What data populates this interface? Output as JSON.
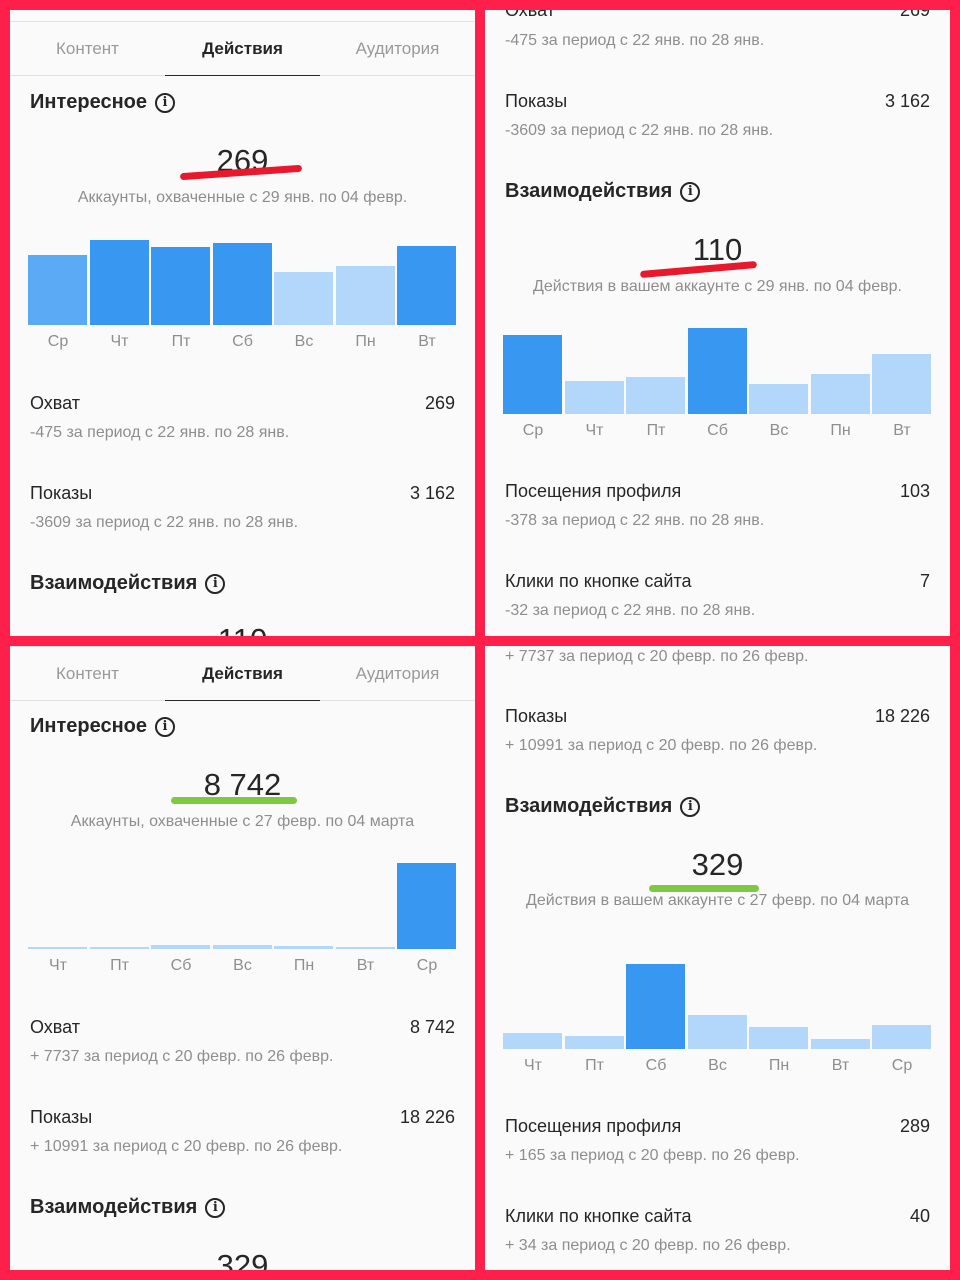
{
  "tabs": [
    "Контент",
    "Действия",
    "Аудитория"
  ],
  "colors": {
    "frame": "#ff1f4b",
    "bar_dark": "#3897f0",
    "bar_mid": "#5aaaf5",
    "bar_light": "#b3d7fb",
    "underline_red": "#e8192c",
    "underline_green": "#7ec843"
  },
  "icons": {
    "info": "info-circle-icon"
  },
  "panel1": {
    "section_title": "Интересное",
    "reach_value": "269",
    "reach_caption": "Аккаунты, охваченные с 29 янв. по 04 февр.",
    "days": [
      "Ср",
      "Чт",
      "Пт",
      "Сб",
      "Вс",
      "Пн",
      "Вт"
    ],
    "rows": [
      {
        "label": "Охват",
        "value": "269",
        "sub": "-475 за период с 22 янв. по 28 янв."
      },
      {
        "label": "Показы",
        "value": "3 162",
        "sub": "-3609 за период с 22 янв. по 28 янв."
      }
    ],
    "interactions_title": "Взаимодействия",
    "cut_value": "110"
  },
  "panel2": {
    "top_cut_label": "Охват",
    "top_cut_value": "269",
    "top_cut_sub": "-475 за период с 22 янв. по 28 янв.",
    "impressions": {
      "label": "Показы",
      "value": "3 162",
      "sub": "-3609 за период с 22 янв. по 28 янв."
    },
    "interactions_title": "Взаимодействия",
    "interactions_value": "110",
    "interactions_caption": "Действия в вашем аккаунте с 29 янв. по 04 февр.",
    "days": [
      "Ср",
      "Чт",
      "Пт",
      "Сб",
      "Вс",
      "Пн",
      "Вт"
    ],
    "rows": [
      {
        "label": "Посещения профиля",
        "value": "103",
        "sub": "-378 за период с 22 янв. по 28 янв."
      },
      {
        "label": "Клики по кнопке сайта",
        "value": "7",
        "sub": "-32 за период с 22 янв. по 28 янв."
      }
    ]
  },
  "panel3": {
    "section_title": "Интересное",
    "reach_value": "8 742",
    "reach_caption": "Аккаунты, охваченные с 27 февр. по 04 марта",
    "days": [
      "Чт",
      "Пт",
      "Сб",
      "Вс",
      "Пн",
      "Вт",
      "Ср"
    ],
    "rows": [
      {
        "label": "Охват",
        "value": "8 742",
        "sub": "+ 7737 за период с 20 февр. по 26 февр."
      },
      {
        "label": "Показы",
        "value": "18 226",
        "sub": "+ 10991 за период с 20 февр. по 26 февр."
      }
    ],
    "interactions_title": "Взаимодействия",
    "cut_value": "329"
  },
  "panel4": {
    "top_cut_sub": "+ 7737 за период с 20 февр. по 26 февр.",
    "impressions": {
      "label": "Показы",
      "value": "18 226",
      "sub": "+ 10991 за период с 20 февр. по 26 февр."
    },
    "interactions_title": "Взаимодействия",
    "interactions_value": "329",
    "interactions_caption": "Действия в вашем аккаунте с 27 февр. по 04 марта",
    "days": [
      "Чт",
      "Пт",
      "Сб",
      "Вс",
      "Пн",
      "Вт",
      "Ср"
    ],
    "rows": [
      {
        "label": "Посещения профиля",
        "value": "289",
        "sub": "+ 165 за период с 20 февр. по 26 февр."
      },
      {
        "label": "Клики по кнопке сайта",
        "value": "40",
        "sub": "+ 34 за период с 20 февр. по 26 февр."
      }
    ]
  },
  "chart_data": [
    {
      "type": "bar",
      "categories": [
        "Ср",
        "Чт",
        "Пт",
        "Сб",
        "Вс",
        "Пн",
        "Вт"
      ],
      "values": [
        70,
        85,
        78,
        82,
        53,
        59,
        79
      ]
    },
    {
      "type": "bar",
      "categories": [
        "Ср",
        "Чт",
        "Пт",
        "Сб",
        "Вс",
        "Пн",
        "Вт"
      ],
      "values": [
        79,
        33,
        37,
        86,
        30,
        40,
        60
      ]
    },
    {
      "type": "bar",
      "categories": [
        "Чт",
        "Пт",
        "Сб",
        "Вс",
        "Пн",
        "Вт",
        "Ср"
      ],
      "values": [
        2,
        1,
        4,
        4,
        3,
        2,
        86
      ]
    },
    {
      "type": "bar",
      "categories": [
        "Чт",
        "Пт",
        "Сб",
        "Вс",
        "Пн",
        "Вт",
        "Ср"
      ],
      "values": [
        16,
        13,
        85,
        34,
        22,
        10,
        24
      ]
    }
  ]
}
